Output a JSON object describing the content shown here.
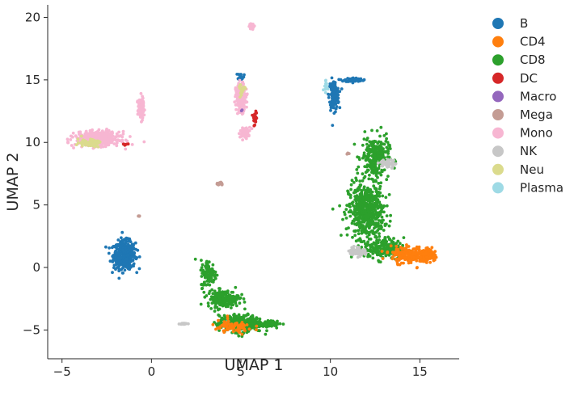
{
  "chart_data": {
    "type": "scatter",
    "title": "",
    "xlabel": "UMAP 1",
    "ylabel": "UMAP 2",
    "xlim": [
      -5.8,
      17.2
    ],
    "ylim": [
      -7.3,
      21.0
    ],
    "xticks": [
      -5,
      0,
      5,
      10,
      15
    ],
    "yticks": [
      -5,
      0,
      5,
      10,
      15,
      20
    ],
    "grid": false,
    "legend": {
      "position": "outside-right",
      "entries": [
        {
          "name": "B",
          "color": "#1f77b4"
        },
        {
          "name": "CD4",
          "color": "#ff7f0e"
        },
        {
          "name": "CD8",
          "color": "#2ca02c"
        },
        {
          "name": "DC",
          "color": "#d62728"
        },
        {
          "name": "Macro",
          "color": "#9467bd"
        },
        {
          "name": "Mega",
          "color": "#c49c94"
        },
        {
          "name": "Mono",
          "color": "#f7b6d2"
        },
        {
          "name": "NK",
          "color": "#c7c7c7"
        },
        {
          "name": "Neu",
          "color": "#dbdb8d"
        },
        {
          "name": "Plasma",
          "color": "#9edae5"
        }
      ]
    },
    "clusters": [
      {
        "series": "B",
        "center": [
          -1.5,
          1.0
        ],
        "spread": [
          0.55,
          1.0
        ],
        "n": 500
      },
      {
        "series": "B",
        "center": [
          10.2,
          13.8
        ],
        "spread": [
          0.25,
          1.1
        ],
        "n": 140
      },
      {
        "series": "B",
        "center": [
          11.3,
          15.0
        ],
        "spread": [
          0.45,
          0.15
        ],
        "n": 70
      },
      {
        "series": "B",
        "center": [
          5.0,
          15.3
        ],
        "spread": [
          0.15,
          0.25
        ],
        "n": 20
      },
      {
        "series": "CD8",
        "center": [
          12.0,
          4.5
        ],
        "spread": [
          0.9,
          2.0
        ],
        "n": 550
      },
      {
        "series": "CD8",
        "center": [
          12.5,
          8.8
        ],
        "spread": [
          0.7,
          1.5
        ],
        "n": 250
      },
      {
        "series": "CD8",
        "center": [
          13.0,
          1.5
        ],
        "spread": [
          1.0,
          0.8
        ],
        "n": 200
      },
      {
        "series": "CD8",
        "center": [
          3.2,
          -0.5
        ],
        "spread": [
          0.4,
          1.0
        ],
        "n": 110
      },
      {
        "series": "CD8",
        "center": [
          4.0,
          -2.5
        ],
        "spread": [
          0.8,
          0.6
        ],
        "n": 200
      },
      {
        "series": "CD8",
        "center": [
          5.0,
          -4.5
        ],
        "spread": [
          1.1,
          0.6
        ],
        "n": 420
      },
      {
        "series": "CD8",
        "center": [
          6.8,
          -4.5
        ],
        "spread": [
          0.4,
          0.2
        ],
        "n": 50
      },
      {
        "series": "CD4",
        "center": [
          14.5,
          1.0
        ],
        "spread": [
          1.0,
          0.6
        ],
        "n": 260
      },
      {
        "series": "CD4",
        "center": [
          15.5,
          1.0
        ],
        "spread": [
          0.4,
          0.4
        ],
        "n": 80
      },
      {
        "series": "CD4",
        "center": [
          4.5,
          -4.8
        ],
        "spread": [
          1.1,
          0.5
        ],
        "n": 80
      },
      {
        "series": "Mono",
        "center": [
          -3.0,
          10.3
        ],
        "spread": [
          1.1,
          0.5
        ],
        "n": 480
      },
      {
        "series": "Mono",
        "center": [
          -0.6,
          12.7
        ],
        "spread": [
          0.15,
          0.8
        ],
        "n": 90
      },
      {
        "series": "Mono",
        "center": [
          5.0,
          13.6
        ],
        "spread": [
          0.25,
          1.0
        ],
        "n": 230
      },
      {
        "series": "Mono",
        "center": [
          5.2,
          10.8
        ],
        "spread": [
          0.3,
          0.4
        ],
        "n": 40
      },
      {
        "series": "Mono",
        "center": [
          5.6,
          19.3
        ],
        "spread": [
          0.15,
          0.2
        ],
        "n": 25
      },
      {
        "series": "NK",
        "center": [
          11.5,
          1.3
        ],
        "spread": [
          0.4,
          0.3
        ],
        "n": 90
      },
      {
        "series": "NK",
        "center": [
          13.2,
          8.3
        ],
        "spread": [
          0.4,
          0.3
        ],
        "n": 60
      },
      {
        "series": "NK",
        "center": [
          1.8,
          -4.5
        ],
        "spread": [
          0.2,
          0.05
        ],
        "n": 20
      },
      {
        "series": "Neu",
        "center": [
          -3.5,
          10.0
        ],
        "spread": [
          0.6,
          0.3
        ],
        "n": 60
      },
      {
        "series": "Neu",
        "center": [
          5.0,
          14.2
        ],
        "spread": [
          0.2,
          0.5
        ],
        "n": 20
      },
      {
        "series": "DC",
        "center": [
          5.8,
          12.0
        ],
        "spread": [
          0.15,
          0.6
        ],
        "n": 20
      },
      {
        "series": "DC",
        "center": [
          -1.5,
          9.8
        ],
        "spread": [
          0.15,
          0.1
        ],
        "n": 6
      },
      {
        "series": "Mega",
        "center": [
          3.8,
          6.7
        ],
        "spread": [
          0.2,
          0.1
        ],
        "n": 15
      },
      {
        "series": "Mega",
        "center": [
          -0.7,
          4.1
        ],
        "spread": [
          0.05,
          0.05
        ],
        "n": 4
      },
      {
        "series": "Mega",
        "center": [
          11.0,
          9.1
        ],
        "spread": [
          0.1,
          0.1
        ],
        "n": 5
      },
      {
        "series": "Plasma",
        "center": [
          9.7,
          14.5
        ],
        "spread": [
          0.15,
          0.4
        ],
        "n": 15
      },
      {
        "series": "Macro",
        "center": [
          5.0,
          12.5
        ],
        "spread": [
          0.1,
          0.1
        ],
        "n": 2
      }
    ]
  }
}
